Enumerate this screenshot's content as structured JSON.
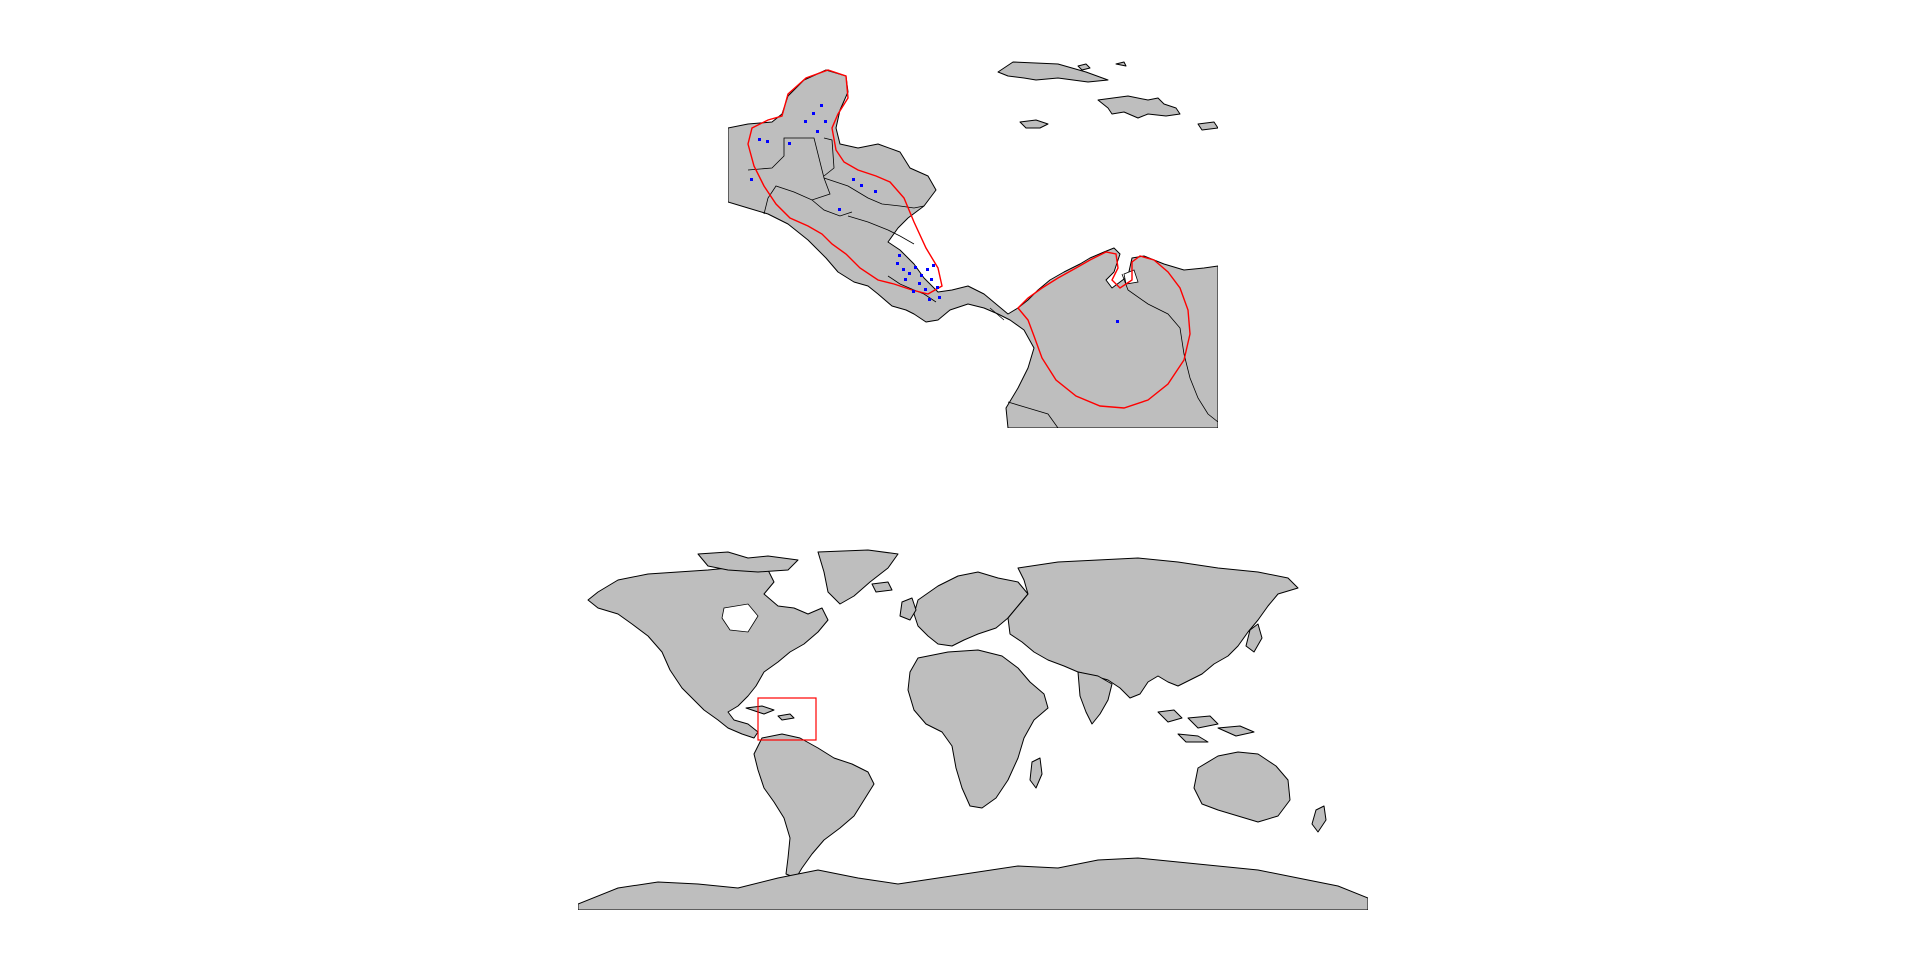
{
  "zoom_map": {
    "land_fill": "#bebebe",
    "border_color": "#000000",
    "range_color": "#ff0000",
    "point_color": "#0000ff",
    "occurrence_count": 30
  },
  "overview_map": {
    "land_fill": "#bebebe",
    "border_color": "#000000",
    "extent_color": "#ff0000"
  }
}
